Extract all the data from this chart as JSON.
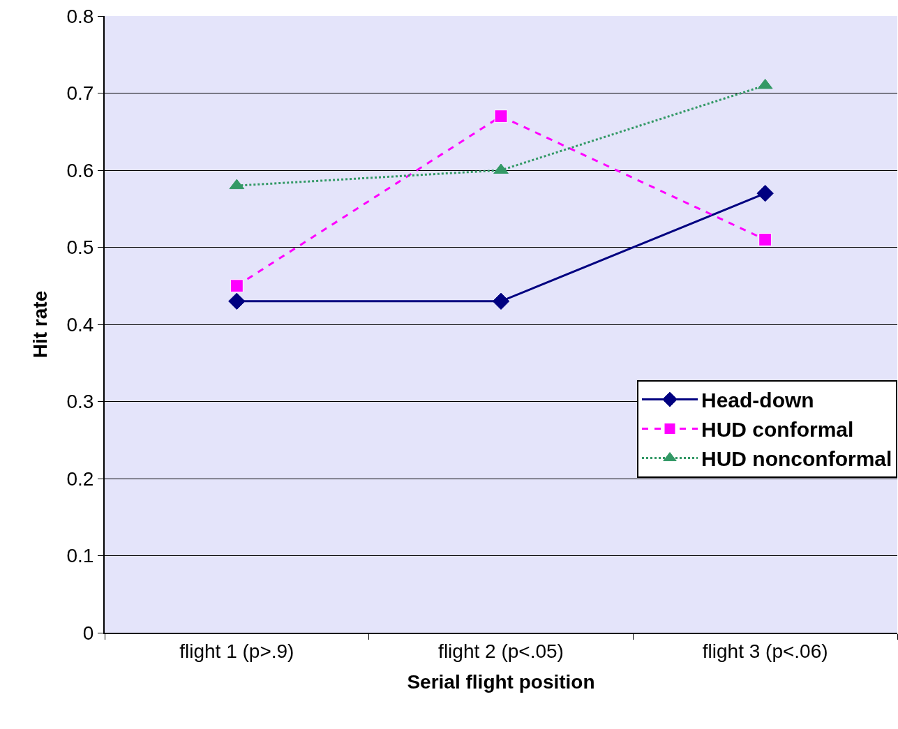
{
  "chart_data": {
    "type": "line",
    "xlabel": "Serial flight position",
    "ylabel": "Hit rate",
    "categories": [
      "flight 1 (p>.9)",
      "flight 2 (p<.05)",
      "flight 3 (p<.06)"
    ],
    "series": [
      {
        "name": "Head-down",
        "color": "#000080",
        "values": [
          0.43,
          0.43,
          0.57
        ],
        "marker": "diamond",
        "line_style": "solid"
      },
      {
        "name": "HUD conformal",
        "color": "#ff00ff",
        "values": [
          0.45,
          0.67,
          0.51
        ],
        "marker": "square",
        "line_style": "dashed"
      },
      {
        "name": "HUD nonconformal",
        "color": "#339966",
        "values": [
          0.58,
          0.6,
          0.71
        ],
        "marker": "triangle",
        "line_style": "dotted"
      }
    ],
    "ylim": [
      0,
      0.8
    ],
    "yticks": [
      0,
      0.1,
      0.2,
      0.3,
      0.4,
      0.5,
      0.6,
      0.7,
      0.8
    ],
    "grid": "y",
    "legend": "right"
  }
}
